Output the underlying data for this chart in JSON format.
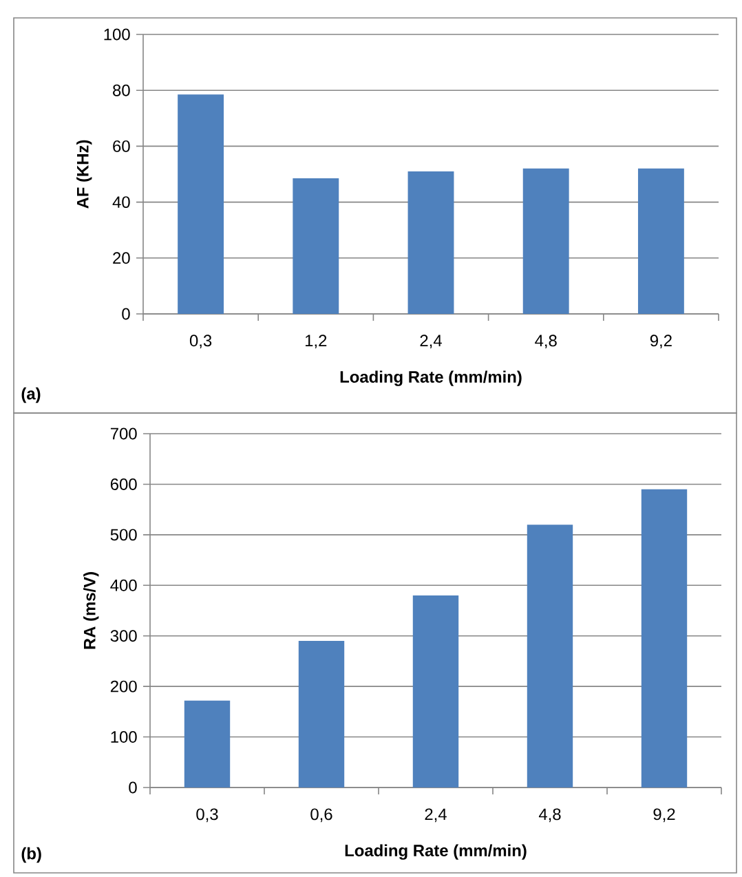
{
  "chart_data": [
    {
      "type": "bar",
      "xlabel": "Loading Rate (mm/min)",
      "ylabel": "AF (KHz)",
      "categories": [
        "0,3",
        "1,2",
        "2,4",
        "4,8",
        "9,2"
      ],
      "values": [
        78.5,
        48.5,
        51,
        52,
        52
      ],
      "color": "#4f81bd",
      "ylim": [
        0,
        100
      ],
      "yticks": [
        0,
        20,
        40,
        60,
        80,
        100
      ],
      "grid": "y",
      "annotations": [
        "(a)"
      ]
    },
    {
      "type": "bar",
      "xlabel": "Loading Rate (mm/min)",
      "ylabel": "RA (ms/V)",
      "categories": [
        "0,3",
        "0,6",
        "2,4",
        "4,8",
        "9,2"
      ],
      "values": [
        172,
        290,
        380,
        520,
        590
      ],
      "color": "#4f81bd",
      "ylim": [
        0,
        700
      ],
      "yticks": [
        0,
        100,
        200,
        300,
        400,
        500,
        600,
        700
      ],
      "grid": "y",
      "annotations": [
        "(b)"
      ]
    }
  ]
}
